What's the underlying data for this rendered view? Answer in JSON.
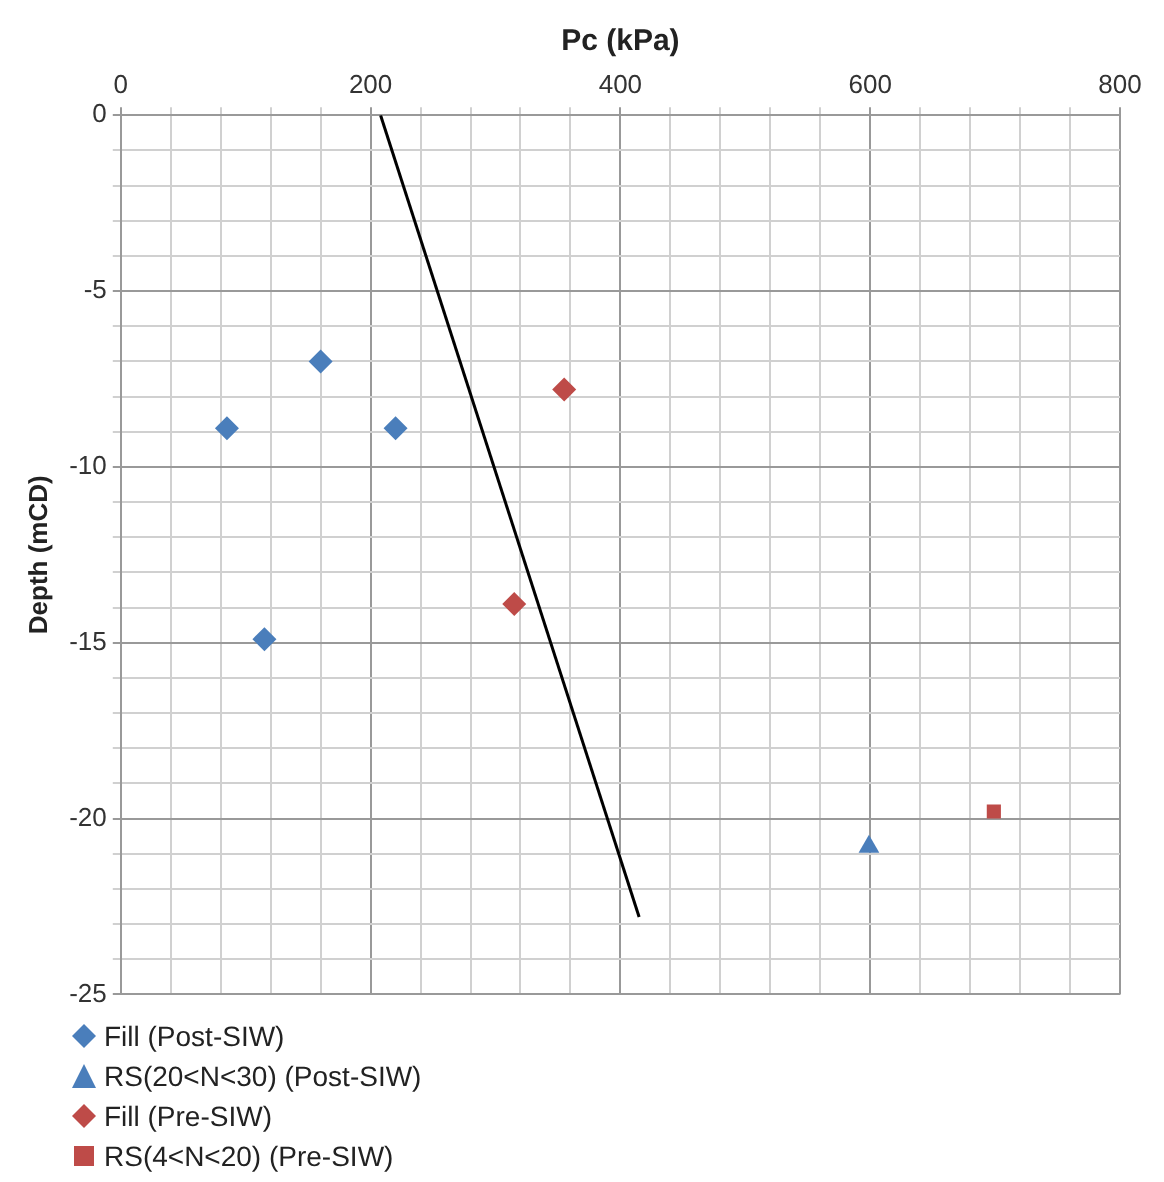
{
  "chart_data": {
    "type": "scatter",
    "xlabel": "Pc (kPa)",
    "ylabel": "Depth (mCD)",
    "xlim": [
      0,
      800
    ],
    "ylim": [
      -25,
      0
    ],
    "xticks": [
      0,
      {
        "value": 40,
        "label": null
      },
      {
        "value": 80,
        "label": null
      },
      {
        "value": 120,
        "label": null
      },
      {
        "value": 160,
        "label": null
      },
      200,
      {
        "value": 240,
        "label": null
      },
      {
        "value": 280,
        "label": null
      },
      {
        "value": 320,
        "label": null
      },
      {
        "value": 360,
        "label": null
      },
      400,
      {
        "value": 440,
        "label": null
      },
      {
        "value": 480,
        "label": null
      },
      {
        "value": 520,
        "label": null
      },
      {
        "value": 560,
        "label": null
      },
      600,
      {
        "value": 640,
        "label": null
      },
      {
        "value": 680,
        "label": null
      },
      {
        "value": 720,
        "label": null
      },
      {
        "value": 760,
        "label": null
      },
      800
    ],
    "yticks": [
      -25,
      {
        "value": -24,
        "label": null
      },
      {
        "value": -23,
        "label": null
      },
      {
        "value": -22,
        "label": null
      },
      {
        "value": -21,
        "label": null
      },
      -20,
      {
        "value": -19,
        "label": null
      },
      {
        "value": -18,
        "label": null
      },
      {
        "value": -17,
        "label": null
      },
      {
        "value": -16,
        "label": null
      },
      -15,
      {
        "value": -14,
        "label": null
      },
      {
        "value": -13,
        "label": null
      },
      {
        "value": -12,
        "label": null
      },
      {
        "value": -11,
        "label": null
      },
      -10,
      {
        "value": -9,
        "label": null
      },
      {
        "value": -8,
        "label": null
      },
      {
        "value": -7,
        "label": null
      },
      {
        "value": -6,
        "label": null
      },
      -5,
      {
        "value": -4,
        "label": null
      },
      {
        "value": -3,
        "label": null
      },
      {
        "value": -2,
        "label": null
      },
      {
        "value": -1,
        "label": null
      },
      0
    ],
    "grid": true,
    "legend": "bottom left",
    "series": [
      {
        "name": "Fill (Post-SIW)",
        "color": "#4a7ebb",
        "marker": "diamond",
        "x": [
          160,
          85,
          220,
          115
        ],
        "values": [
          -7,
          -8.9,
          -8.9,
          -14.9
        ]
      },
      {
        "name": "RS(20<N<30) (Post-SIW)",
        "color": "#4a7ebb",
        "marker": "triangle",
        "x": [
          599
        ],
        "values": [
          -20.8
        ]
      },
      {
        "name": "Fill (Pre-SIW)",
        "color": "#be4b48",
        "marker": "diamond",
        "x": [
          355,
          315
        ],
        "values": [
          -7.8,
          -13.9
        ]
      },
      {
        "name": "RS(4<N<20) (Pre-SIW)",
        "color": "#be4b48",
        "marker": "square",
        "x": [
          699
        ],
        "values": [
          -19.8
        ]
      },
      {
        "type": "line",
        "color": "#000000",
        "marker": "none",
        "line_style": "solid",
        "x": [
          208,
          415
        ],
        "values": [
          0,
          -22.8
        ]
      }
    ]
  }
}
